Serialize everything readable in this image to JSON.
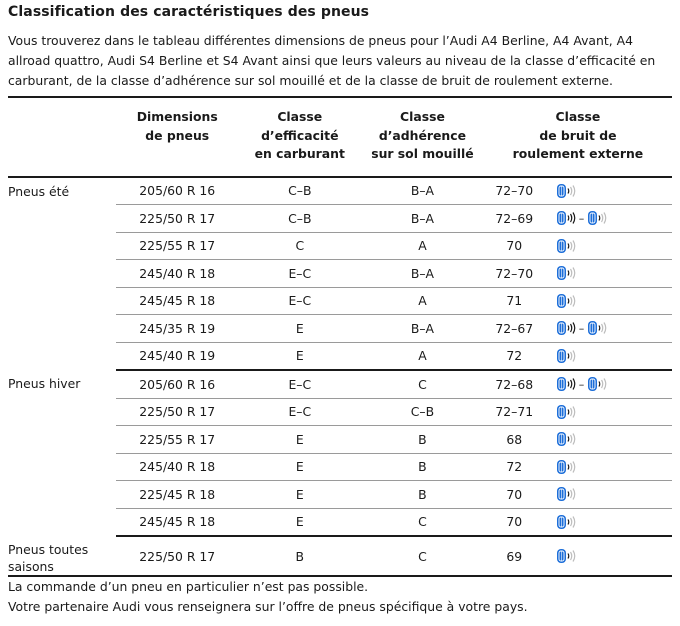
{
  "title": "Classification des caractéristiques des pneus",
  "intro": "Vous trouverez dans le tableau différentes dimensions de pneus pour l’Audi A4 Berline, A4 Avant, A4 allroad quattro, Audi S4 Berline et S4 Avant ainsi que leurs valeurs au niveau de la classe d’efficacité en carburant, de la classe d’adhérence sur sol mouillé et de la classe de bruit de roulement externe.",
  "headers": {
    "dimensions": [
      "Dimensions",
      "de pneus"
    ],
    "fuel": [
      "Classe",
      "d’efficacité",
      "en carburant"
    ],
    "wet": [
      "Classe",
      "d’adhérence",
      "sur sol mouillé"
    ],
    "noise": [
      "Classe",
      "de bruit de",
      "roulement externe"
    ]
  },
  "groups": [
    {
      "label": "Pneus été",
      "rows": [
        {
          "size": "205/60 R 16",
          "fuel": "C–B",
          "wet": "B–A",
          "noise": "72–70",
          "icons": [
            "noise-class-1"
          ]
        },
        {
          "size": "225/50 R 17",
          "fuel": "C–B",
          "wet": "B–A",
          "noise": "72–69",
          "icons": [
            "noise-class-2",
            "noise-class-1"
          ]
        },
        {
          "size": "225/55 R 17",
          "fuel": "C",
          "wet": "A",
          "noise": "70",
          "icons": [
            "noise-class-1"
          ]
        },
        {
          "size": "245/40 R 18",
          "fuel": "E–C",
          "wet": "B–A",
          "noise": "72–70",
          "icons": [
            "noise-class-1"
          ]
        },
        {
          "size": "245/45 R 18",
          "fuel": "E–C",
          "wet": "A",
          "noise": "71",
          "icons": [
            "noise-class-1"
          ]
        },
        {
          "size": "245/35 R 19",
          "fuel": "E",
          "wet": "B–A",
          "noise": "72–67",
          "icons": [
            "noise-class-2",
            "noise-class-1"
          ]
        },
        {
          "size": "245/40 R 19",
          "fuel": "E",
          "wet": "A",
          "noise": "72",
          "icons": [
            "noise-class-1"
          ]
        }
      ]
    },
    {
      "label": "Pneus hiver",
      "rows": [
        {
          "size": "205/60 R 16",
          "fuel": "E–C",
          "wet": "C",
          "noise": "72–68",
          "icons": [
            "noise-class-2",
            "noise-class-1"
          ]
        },
        {
          "size": "225/50 R 17",
          "fuel": "E–C",
          "wet": "C–B",
          "noise": "72–71",
          "icons": [
            "noise-class-1"
          ]
        },
        {
          "size": "225/55 R 17",
          "fuel": "E",
          "wet": "B",
          "noise": "68",
          "icons": [
            "noise-class-1"
          ]
        },
        {
          "size": "245/40 R 18",
          "fuel": "E",
          "wet": "B",
          "noise": "72",
          "icons": [
            "noise-class-1"
          ]
        },
        {
          "size": "225/45 R 18",
          "fuel": "E",
          "wet": "B",
          "noise": "70",
          "icons": [
            "noise-class-1"
          ]
        },
        {
          "size": "245/45 R 18",
          "fuel": "E",
          "wet": "C",
          "noise": "70",
          "icons": [
            "noise-class-1"
          ]
        }
      ]
    },
    {
      "label": "Pneus toutes saisons",
      "rows": [
        {
          "size": "225/50 R 17",
          "fuel": "B",
          "wet": "C",
          "noise": "69",
          "icons": [
            "noise-class-1"
          ]
        }
      ]
    }
  ],
  "footer": [
    "La commande d’un pneu en particulier n’est pas possible.",
    "Votre partenaire Audi vous renseignera sur l’offre de pneus spécifique à votre pays."
  ],
  "colors": {
    "icon_blue": "#1e6fd9",
    "text": "#1a1a1a",
    "rule": "#1a1a1a",
    "thin_rule": "#9a9a9a"
  }
}
